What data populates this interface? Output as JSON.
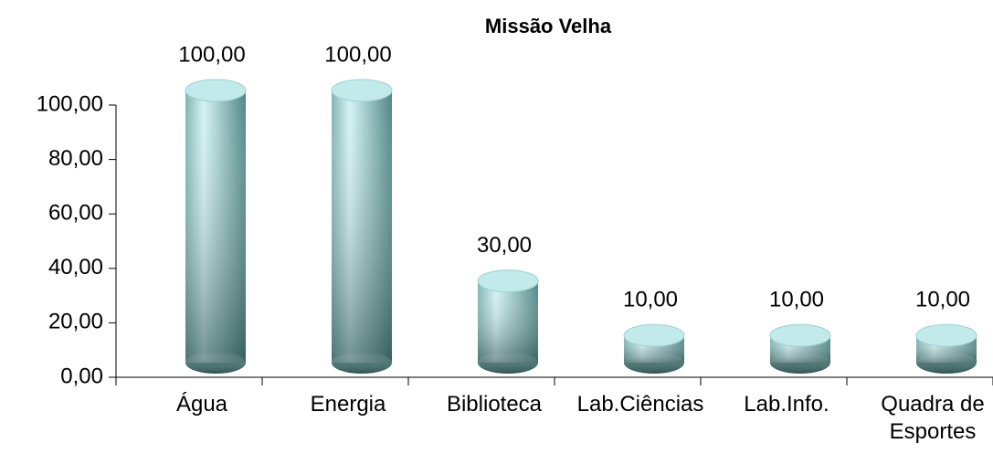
{
  "chart_data": {
    "type": "bar",
    "title": "Missão Velha",
    "categories": [
      "Água",
      "Energia",
      "Biblioteca",
      "Lab.Ciências",
      "Lab.Info.",
      "Quadra de Esportes"
    ],
    "values": [
      100,
      100,
      30,
      10,
      10,
      10
    ],
    "value_labels": [
      "100,00",
      "100,00",
      "30,00",
      "10,00",
      "10,00",
      "10,00"
    ],
    "color": "#8cc8c8",
    "ylim": [
      0,
      100
    ],
    "yticks": [
      {
        "value": 0,
        "label": "0,00"
      },
      {
        "value": 20,
        "label": "20,00"
      },
      {
        "value": 40,
        "label": "40,00"
      },
      {
        "value": 60,
        "label": "60,00"
      },
      {
        "value": 80,
        "label": "80,00"
      },
      {
        "value": 100,
        "label": "100,00"
      }
    ]
  }
}
